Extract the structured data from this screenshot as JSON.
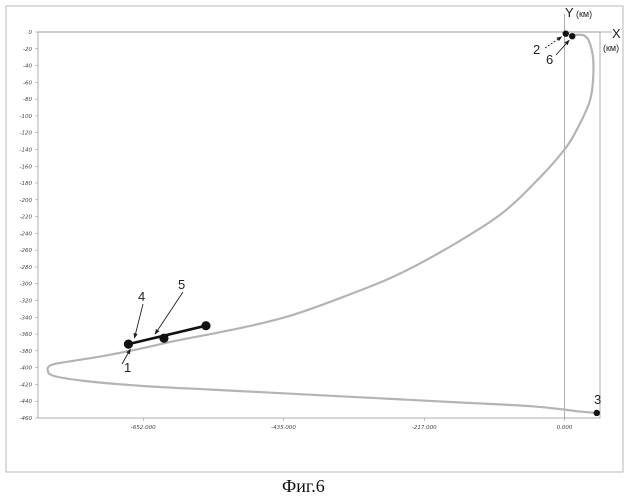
{
  "figure": {
    "caption": "Фиг.6",
    "x_axis_label": "X",
    "x_axis_unit": "(км)",
    "y_axis_label": "Y",
    "y_axis_unit": "(км)"
  },
  "chart_data": {
    "type": "line",
    "xlabel": "X (км)",
    "ylabel": "Y (км)",
    "y_ticks": [
      0,
      -20,
      -40,
      -60,
      -80,
      -100,
      -120,
      -140,
      -160,
      -180,
      -200,
      -220,
      -240,
      -260,
      -280,
      -300,
      -320,
      -340,
      -360,
      -380,
      -400,
      -420,
      -440,
      -460
    ],
    "y_tick_labels": [
      "0",
      "-20",
      "-40",
      "-60",
      "-80",
      "-100",
      "-120",
      "-140",
      "-160",
      "-180",
      "-200",
      "-220",
      "-240",
      "-260",
      "-280",
      "-300",
      "-320",
      "-340",
      "-360",
      "-380",
      "-400",
      "-420",
      "-440",
      "-460"
    ],
    "x_ticks": [
      -652,
      -435,
      -217,
      0
    ],
    "x_tick_labels": [
      "-652.000",
      "-435.000",
      "-217.000",
      "0.000"
    ],
    "xlim": [
      -815,
      55
    ],
    "ylim": [
      -460,
      0
    ],
    "series": [
      {
        "x": [
          10,
          30,
          40,
          45,
          40,
          20,
          0,
          -40,
          -100,
          -180,
          -260,
          -340,
          -420,
          -485,
          -548,
          -602,
          -660,
          -720,
          -770,
          -795,
          -800,
          -790,
          -740,
          -650,
          -550,
          -450,
          -350,
          -250,
          -150,
          -50,
          0,
          20,
          50
        ],
        "y": [
          -4,
          -4,
          -15,
          -40,
          -80,
          -115,
          -140,
          -175,
          -218,
          -257,
          -290,
          -315,
          -337,
          -350,
          -360,
          -368,
          -378,
          -387,
          -393,
          -397,
          -403,
          -410,
          -416,
          -422,
          -426,
          -430,
          -434,
          -438,
          -442,
          -446,
          -450,
          -452,
          -454
        ]
      }
    ],
    "segment": {
      "x": [
        -675,
        -620,
        -555
      ],
      "y": [
        -372,
        -365,
        -350
      ]
    },
    "points": [
      {
        "label": "1",
        "x": -675,
        "y": -372
      },
      {
        "label": "2",
        "x": 2,
        "y": -2
      },
      {
        "label": "3",
        "x": 50,
        "y": -454
      },
      {
        "label": "4",
        "x": -620,
        "y": -365
      },
      {
        "label": "5",
        "x": -555,
        "y": -350
      },
      {
        "label": "6",
        "x": 12,
        "y": -5
      }
    ]
  }
}
